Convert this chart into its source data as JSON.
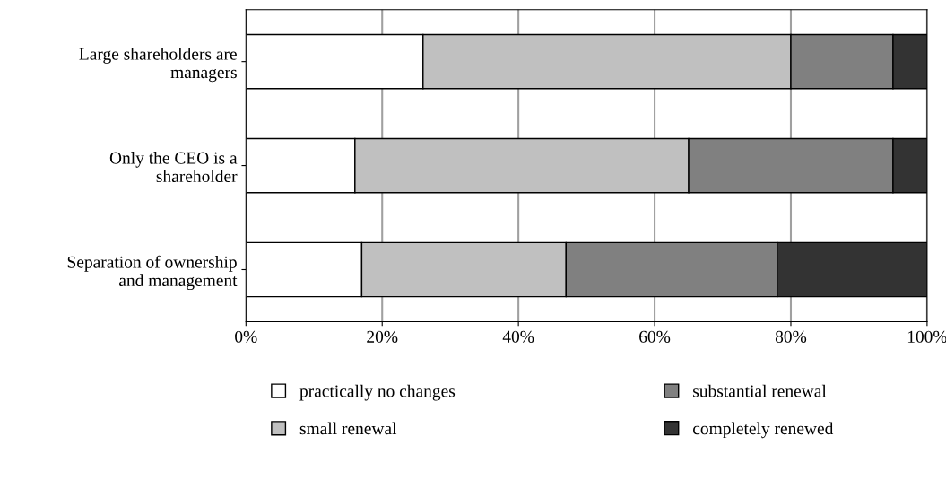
{
  "chart_data": {
    "type": "bar",
    "orientation": "horizontal",
    "stacked": true,
    "categories": [
      "Large shareholders are\nmanagers",
      "Only the CEO is a\nshareholder",
      "Separation of ownership\nand management"
    ],
    "series": [
      {
        "name": "practically no changes",
        "color": "#ffffff",
        "values": [
          26,
          16,
          17
        ]
      },
      {
        "name": "small renewal",
        "color": "#c0c0c0",
        "values": [
          54,
          49,
          30
        ]
      },
      {
        "name": "substantial renewal",
        "color": "#808080",
        "values": [
          15,
          30,
          31
        ]
      },
      {
        "name": "completely renewed",
        "color": "#333333",
        "values": [
          5,
          5,
          22
        ]
      }
    ],
    "xlim": [
      0,
      100
    ],
    "xticks": [
      {
        "value": 0,
        "label": "0%"
      },
      {
        "value": 20,
        "label": "20%"
      },
      {
        "value": 40,
        "label": "40%"
      },
      {
        "value": 60,
        "label": "60%"
      },
      {
        "value": 80,
        "label": "80%"
      },
      {
        "value": 100,
        "label": "100%"
      }
    ],
    "grid": "x",
    "legend": "bottom"
  }
}
